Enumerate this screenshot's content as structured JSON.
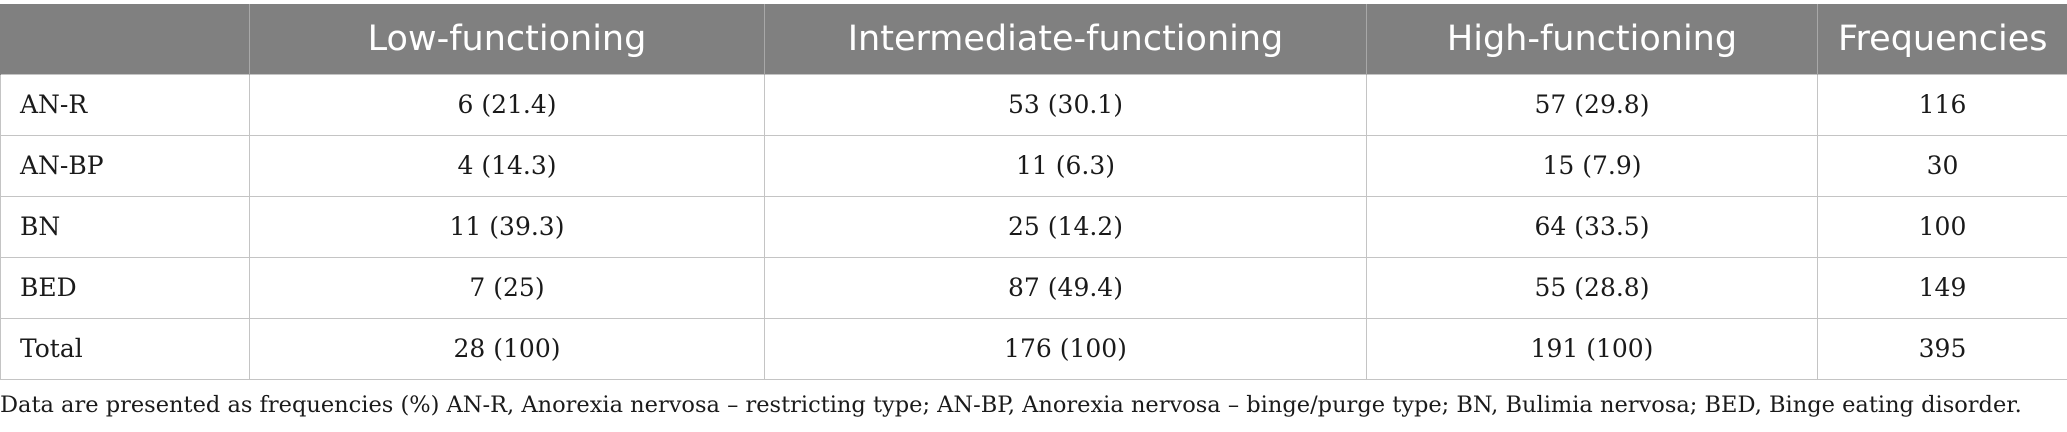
{
  "table": {
    "headers": [
      "",
      "Low-functioning",
      "Intermediate-functioning",
      "High-functioning",
      "Frequencies"
    ],
    "rows": [
      {
        "label": "AN-R",
        "cells": [
          "6 (21.4)",
          "53 (30.1)",
          "57 (29.8)",
          "116"
        ]
      },
      {
        "label": "AN-BP",
        "cells": [
          "4 (14.3)",
          "11 (6.3)",
          "15 (7.9)",
          "30"
        ]
      },
      {
        "label": "BN",
        "cells": [
          "11 (39.3)",
          "25 (14.2)",
          "64 (33.5)",
          "100"
        ]
      },
      {
        "label": "BED",
        "cells": [
          "7 (25)",
          "87 (49.4)",
          "55 (28.8)",
          "149"
        ]
      },
      {
        "label": "Total",
        "cells": [
          "28 (100)",
          "176 (100)",
          "191 (100)",
          "395"
        ]
      }
    ]
  },
  "footnote": "Data are presented as frequencies (%) AN-R, Anorexia nervosa – restricting type; AN-BP, Anorexia nervosa – binge/purge type; BN, Bulimia nervosa; BED, Binge eating disorder.",
  "colors": {
    "header_bg": "#808080",
    "header_text": "#ffffff",
    "grid": "#c4c4c4"
  }
}
